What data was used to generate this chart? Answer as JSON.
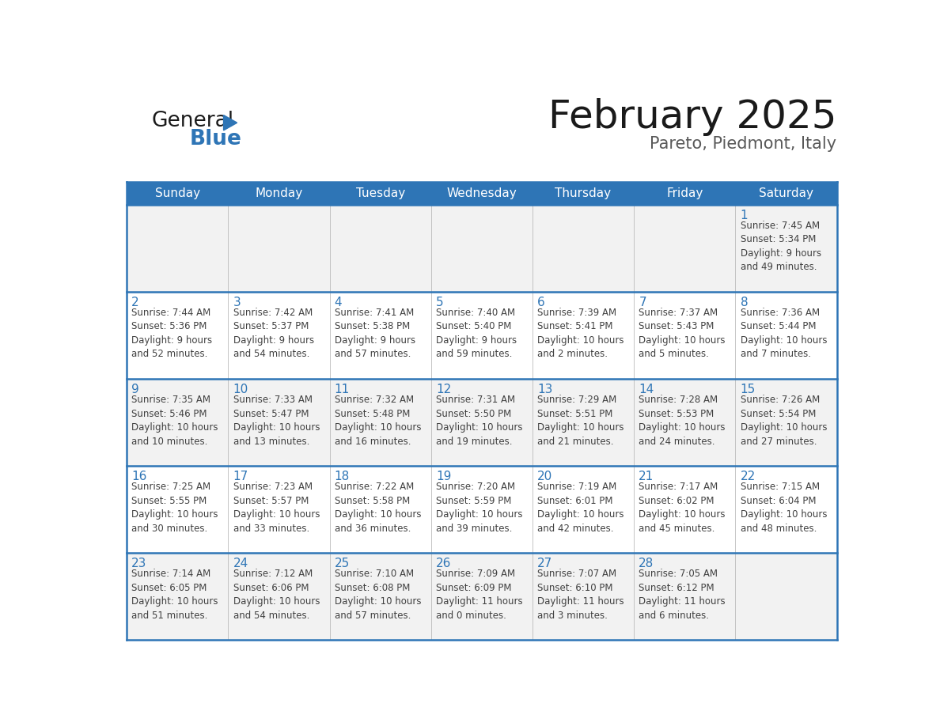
{
  "title": "February 2025",
  "subtitle": "Pareto, Piedmont, Italy",
  "header_bg": "#2E75B6",
  "header_text_color": "#FFFFFF",
  "cell_bg_light": "#F2F2F2",
  "cell_bg_white": "#FFFFFF",
  "day_headers": [
    "Sunday",
    "Monday",
    "Tuesday",
    "Wednesday",
    "Thursday",
    "Friday",
    "Saturday"
  ],
  "logo_color1": "#1a1a1a",
  "logo_color2": "#2E75B6",
  "title_color": "#1a1a1a",
  "subtitle_color": "#595959",
  "day_num_color": "#2E75B6",
  "cell_text_color": "#404040",
  "grid_line_color": "#2E75B6",
  "border_color": "#2E75B6",
  "weeks": [
    [
      {
        "day": null,
        "text": ""
      },
      {
        "day": null,
        "text": ""
      },
      {
        "day": null,
        "text": ""
      },
      {
        "day": null,
        "text": ""
      },
      {
        "day": null,
        "text": ""
      },
      {
        "day": null,
        "text": ""
      },
      {
        "day": 1,
        "text": "Sunrise: 7:45 AM\nSunset: 5:34 PM\nDaylight: 9 hours\nand 49 minutes."
      }
    ],
    [
      {
        "day": 2,
        "text": "Sunrise: 7:44 AM\nSunset: 5:36 PM\nDaylight: 9 hours\nand 52 minutes."
      },
      {
        "day": 3,
        "text": "Sunrise: 7:42 AM\nSunset: 5:37 PM\nDaylight: 9 hours\nand 54 minutes."
      },
      {
        "day": 4,
        "text": "Sunrise: 7:41 AM\nSunset: 5:38 PM\nDaylight: 9 hours\nand 57 minutes."
      },
      {
        "day": 5,
        "text": "Sunrise: 7:40 AM\nSunset: 5:40 PM\nDaylight: 9 hours\nand 59 minutes."
      },
      {
        "day": 6,
        "text": "Sunrise: 7:39 AM\nSunset: 5:41 PM\nDaylight: 10 hours\nand 2 minutes."
      },
      {
        "day": 7,
        "text": "Sunrise: 7:37 AM\nSunset: 5:43 PM\nDaylight: 10 hours\nand 5 minutes."
      },
      {
        "day": 8,
        "text": "Sunrise: 7:36 AM\nSunset: 5:44 PM\nDaylight: 10 hours\nand 7 minutes."
      }
    ],
    [
      {
        "day": 9,
        "text": "Sunrise: 7:35 AM\nSunset: 5:46 PM\nDaylight: 10 hours\nand 10 minutes."
      },
      {
        "day": 10,
        "text": "Sunrise: 7:33 AM\nSunset: 5:47 PM\nDaylight: 10 hours\nand 13 minutes."
      },
      {
        "day": 11,
        "text": "Sunrise: 7:32 AM\nSunset: 5:48 PM\nDaylight: 10 hours\nand 16 minutes."
      },
      {
        "day": 12,
        "text": "Sunrise: 7:31 AM\nSunset: 5:50 PM\nDaylight: 10 hours\nand 19 minutes."
      },
      {
        "day": 13,
        "text": "Sunrise: 7:29 AM\nSunset: 5:51 PM\nDaylight: 10 hours\nand 21 minutes."
      },
      {
        "day": 14,
        "text": "Sunrise: 7:28 AM\nSunset: 5:53 PM\nDaylight: 10 hours\nand 24 minutes."
      },
      {
        "day": 15,
        "text": "Sunrise: 7:26 AM\nSunset: 5:54 PM\nDaylight: 10 hours\nand 27 minutes."
      }
    ],
    [
      {
        "day": 16,
        "text": "Sunrise: 7:25 AM\nSunset: 5:55 PM\nDaylight: 10 hours\nand 30 minutes."
      },
      {
        "day": 17,
        "text": "Sunrise: 7:23 AM\nSunset: 5:57 PM\nDaylight: 10 hours\nand 33 minutes."
      },
      {
        "day": 18,
        "text": "Sunrise: 7:22 AM\nSunset: 5:58 PM\nDaylight: 10 hours\nand 36 minutes."
      },
      {
        "day": 19,
        "text": "Sunrise: 7:20 AM\nSunset: 5:59 PM\nDaylight: 10 hours\nand 39 minutes."
      },
      {
        "day": 20,
        "text": "Sunrise: 7:19 AM\nSunset: 6:01 PM\nDaylight: 10 hours\nand 42 minutes."
      },
      {
        "day": 21,
        "text": "Sunrise: 7:17 AM\nSunset: 6:02 PM\nDaylight: 10 hours\nand 45 minutes."
      },
      {
        "day": 22,
        "text": "Sunrise: 7:15 AM\nSunset: 6:04 PM\nDaylight: 10 hours\nand 48 minutes."
      }
    ],
    [
      {
        "day": 23,
        "text": "Sunrise: 7:14 AM\nSunset: 6:05 PM\nDaylight: 10 hours\nand 51 minutes."
      },
      {
        "day": 24,
        "text": "Sunrise: 7:12 AM\nSunset: 6:06 PM\nDaylight: 10 hours\nand 54 minutes."
      },
      {
        "day": 25,
        "text": "Sunrise: 7:10 AM\nSunset: 6:08 PM\nDaylight: 10 hours\nand 57 minutes."
      },
      {
        "day": 26,
        "text": "Sunrise: 7:09 AM\nSunset: 6:09 PM\nDaylight: 11 hours\nand 0 minutes."
      },
      {
        "day": 27,
        "text": "Sunrise: 7:07 AM\nSunset: 6:10 PM\nDaylight: 11 hours\nand 3 minutes."
      },
      {
        "day": 28,
        "text": "Sunrise: 7:05 AM\nSunset: 6:12 PM\nDaylight: 11 hours\nand 6 minutes."
      },
      {
        "day": null,
        "text": ""
      }
    ]
  ]
}
